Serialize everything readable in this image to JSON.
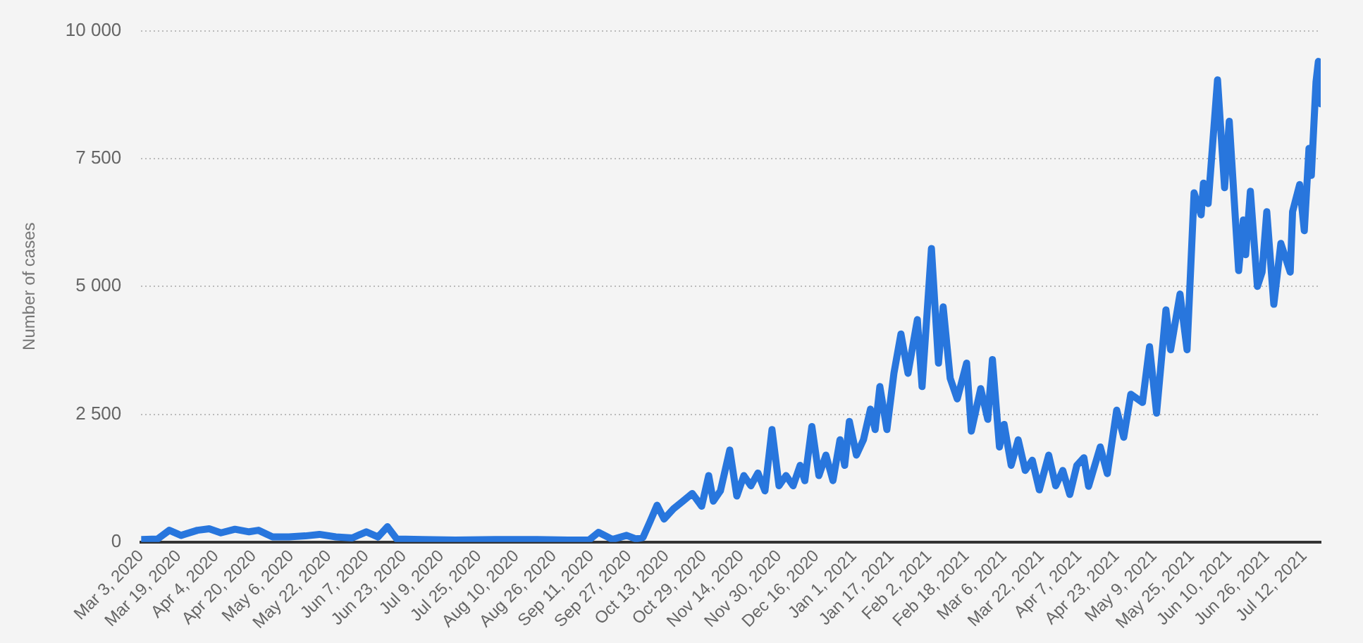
{
  "chart_data": {
    "type": "line",
    "ylabel": "Number of cases",
    "grid": "y",
    "legend": false,
    "marker": "none",
    "line_style": "solid",
    "xlim": [
      "2020-03-03",
      "2021-07-19"
    ],
    "xticks": [
      {
        "value": "2020-03-03",
        "label": "Mar 3, 2020"
      },
      {
        "value": "2020-03-19",
        "label": "Mar 19, 2020"
      },
      {
        "value": "2020-04-04",
        "label": "Apr 4, 2020"
      },
      {
        "value": "2020-04-20",
        "label": "Apr 20, 2020"
      },
      {
        "value": "2020-05-06",
        "label": "May 6, 2020"
      },
      {
        "value": "2020-05-22",
        "label": "May 22, 2020"
      },
      {
        "value": "2020-06-07",
        "label": "Jun 7, 2020"
      },
      {
        "value": "2020-06-23",
        "label": "Jun 23, 2020"
      },
      {
        "value": "2020-07-09",
        "label": "Jul 9, 2020"
      },
      {
        "value": "2020-07-25",
        "label": "Jul 25, 2020"
      },
      {
        "value": "2020-08-10",
        "label": "Aug 10, 2020"
      },
      {
        "value": "2020-08-26",
        "label": "Aug 26, 2020"
      },
      {
        "value": "2020-09-11",
        "label": "Sep 11, 2020"
      },
      {
        "value": "2020-09-27",
        "label": "Sep 27, 2020"
      },
      {
        "value": "2020-10-13",
        "label": "Oct 13, 2020"
      },
      {
        "value": "2020-10-29",
        "label": "Oct 29, 2020"
      },
      {
        "value": "2020-11-14",
        "label": "Nov 14, 2020"
      },
      {
        "value": "2020-11-30",
        "label": "Nov 30, 2020"
      },
      {
        "value": "2020-12-16",
        "label": "Dec 16, 2020"
      },
      {
        "value": "2021-01-01",
        "label": "Jan 1, 2021"
      },
      {
        "value": "2021-01-17",
        "label": "Jan 17, 2021"
      },
      {
        "value": "2021-02-02",
        "label": "Feb 2, 2021"
      },
      {
        "value": "2021-02-18",
        "label": "Feb 18, 2021"
      },
      {
        "value": "2021-03-06",
        "label": "Mar 6, 2021"
      },
      {
        "value": "2021-03-22",
        "label": "Mar 22, 2021"
      },
      {
        "value": "2021-04-07",
        "label": "Apr 7, 2021"
      },
      {
        "value": "2021-04-23",
        "label": "Apr 23, 2021"
      },
      {
        "value": "2021-05-09",
        "label": "May 9, 2021"
      },
      {
        "value": "2021-05-25",
        "label": "May 25, 2021"
      },
      {
        "value": "2021-06-10",
        "label": "Jun 10, 2021"
      },
      {
        "value": "2021-06-26",
        "label": "Jun 26, 2021"
      },
      {
        "value": "2021-07-12",
        "label": "Jul 12, 2021"
      }
    ],
    "ylim": [
      0,
      10000
    ],
    "yticks": [
      0,
      {
        "value": 2500,
        "label": "2 500"
      },
      {
        "value": 5000,
        "label": "5 000"
      },
      {
        "value": 7500,
        "label": "7 500"
      },
      {
        "value": 10000,
        "label": "10 000"
      }
    ],
    "x": [
      "2020-03-03",
      "2020-03-10",
      "2020-03-15",
      "2020-03-20",
      "2020-03-27",
      "2020-04-01",
      "2020-04-06",
      "2020-04-12",
      "2020-04-18",
      "2020-04-22",
      "2020-04-28",
      "2020-05-05",
      "2020-05-12",
      "2020-05-18",
      "2020-05-25",
      "2020-06-01",
      "2020-06-07",
      "2020-06-12",
      "2020-06-16",
      "2020-06-20",
      "2020-07-01",
      "2020-07-15",
      "2020-08-01",
      "2020-08-15",
      "2020-09-01",
      "2020-09-10",
      "2020-09-14",
      "2020-09-20",
      "2020-09-26",
      "2020-09-30",
      "2020-10-03",
      "2020-10-06",
      "2020-10-09",
      "2020-10-12",
      "2020-10-16",
      "2020-10-20",
      "2020-10-24",
      "2020-10-28",
      "2020-10-31",
      "2020-11-02",
      "2020-11-05",
      "2020-11-09",
      "2020-11-12",
      "2020-11-15",
      "2020-11-18",
      "2020-11-21",
      "2020-11-24",
      "2020-11-27",
      "2020-11-30",
      "2020-12-03",
      "2020-12-06",
      "2020-12-09",
      "2020-12-11",
      "2020-12-14",
      "2020-12-17",
      "2020-12-20",
      "2020-12-23",
      "2020-12-26",
      "2020-12-28",
      "2020-12-30",
      "2021-01-02",
      "2021-01-05",
      "2021-01-08",
      "2021-01-10",
      "2021-01-12",
      "2021-01-15",
      "2021-01-18",
      "2021-01-21",
      "2021-01-24",
      "2021-01-28",
      "2021-01-30",
      "2021-02-03",
      "2021-02-06",
      "2021-02-08",
      "2021-02-11",
      "2021-02-14",
      "2021-02-18",
      "2021-02-20",
      "2021-02-24",
      "2021-02-27",
      "2021-03-01",
      "2021-03-04",
      "2021-03-06",
      "2021-03-09",
      "2021-03-12",
      "2021-03-15",
      "2021-03-18",
      "2021-03-21",
      "2021-03-25",
      "2021-03-28",
      "2021-03-31",
      "2021-04-03",
      "2021-04-06",
      "2021-04-09",
      "2021-04-11",
      "2021-04-16",
      "2021-04-19",
      "2021-04-23",
      "2021-04-26",
      "2021-04-29",
      "2021-05-04",
      "2021-05-07",
      "2021-05-10",
      "2021-05-14",
      "2021-05-16",
      "2021-05-20",
      "2021-05-23",
      "2021-05-26",
      "2021-05-29",
      "2021-05-30",
      "2021-06-01",
      "2021-06-05",
      "2021-06-08",
      "2021-06-10",
      "2021-06-14",
      "2021-06-16",
      "2021-06-17",
      "2021-06-19",
      "2021-06-22",
      "2021-06-24",
      "2021-06-26",
      "2021-06-29",
      "2021-07-02",
      "2021-07-06",
      "2021-07-07",
      "2021-07-10",
      "2021-07-12",
      "2021-07-14",
      "2021-07-15",
      "2021-07-17",
      "2021-07-18",
      "2021-07-19"
    ],
    "series": [
      {
        "color": "#2876dd",
        "values": [
          50,
          60,
          230,
          130,
          230,
          260,
          180,
          250,
          200,
          230,
          100,
          100,
          120,
          150,
          100,
          80,
          200,
          100,
          300,
          60,
          50,
          40,
          50,
          50,
          40,
          40,
          190,
          50,
          130,
          60,
          90,
          400,
          720,
          450,
          650,
          800,
          950,
          700,
          1300,
          800,
          1000,
          1800,
          900,
          1300,
          1100,
          1350,
          1000,
          2200,
          1100,
          1300,
          1100,
          1500,
          1200,
          2260,
          1300,
          1700,
          1200,
          2000,
          1500,
          2360,
          1700,
          2000,
          2600,
          2200,
          3040,
          2200,
          3300,
          4070,
          3300,
          4350,
          3040,
          5740,
          3500,
          4600,
          3200,
          2800,
          3500,
          2170,
          3000,
          2400,
          3570,
          1860,
          2300,
          1500,
          2000,
          1400,
          1600,
          1020,
          1700,
          1100,
          1400,
          930,
          1500,
          1650,
          1090,
          1860,
          1340,
          2580,
          2050,
          2890,
          2730,
          3820,
          2520,
          4540,
          3760,
          4850,
          3760,
          6830,
          6400,
          7020,
          6620,
          9040,
          6930,
          8230,
          5310,
          6300,
          5620,
          6860,
          5000,
          5280,
          6460,
          4650,
          5840,
          5280,
          6460,
          6990,
          6090,
          7700,
          7170,
          9000,
          9400,
          8570
        ]
      }
    ]
  }
}
